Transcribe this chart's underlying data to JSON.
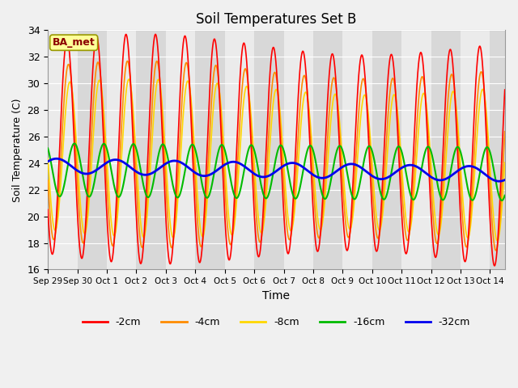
{
  "title": "Soil Temperatures Set B",
  "xlabel": "Time",
  "ylabel": "Soil Temperature (C)",
  "ylim": [
    16,
    34
  ],
  "annotation_text": "BA_met",
  "annotation_color": "#8B0000",
  "annotation_bg": "#FFFF99",
  "legend_entries": [
    "-2cm",
    "-4cm",
    "-8cm",
    "-16cm",
    "-32cm"
  ],
  "line_colors": [
    "#FF0000",
    "#FF8C00",
    "#FFD700",
    "#00BB00",
    "#0000EE"
  ],
  "line_widths": [
    1.2,
    1.2,
    1.2,
    1.5,
    2.0
  ],
  "plot_bg_color": "#D8D8D8",
  "stripe_color": "#EBEBEB",
  "n_days": 15.5,
  "samples_per_day": 144,
  "tick_labels": [
    "Sep 29",
    "Sep 30",
    "Oct 1",
    "Oct 2",
    "Oct 3",
    "Oct 4",
    "Oct 5",
    "Oct 6",
    "Oct 7",
    "Oct 8",
    "Oct 9",
    "Oct 10",
    "Oct 11",
    "Oct 12",
    "Oct 13",
    "Oct 14"
  ],
  "tick_positions": [
    0,
    1,
    2,
    3,
    4,
    5,
    6,
    7,
    8,
    9,
    10,
    11,
    12,
    13,
    14,
    15
  ]
}
